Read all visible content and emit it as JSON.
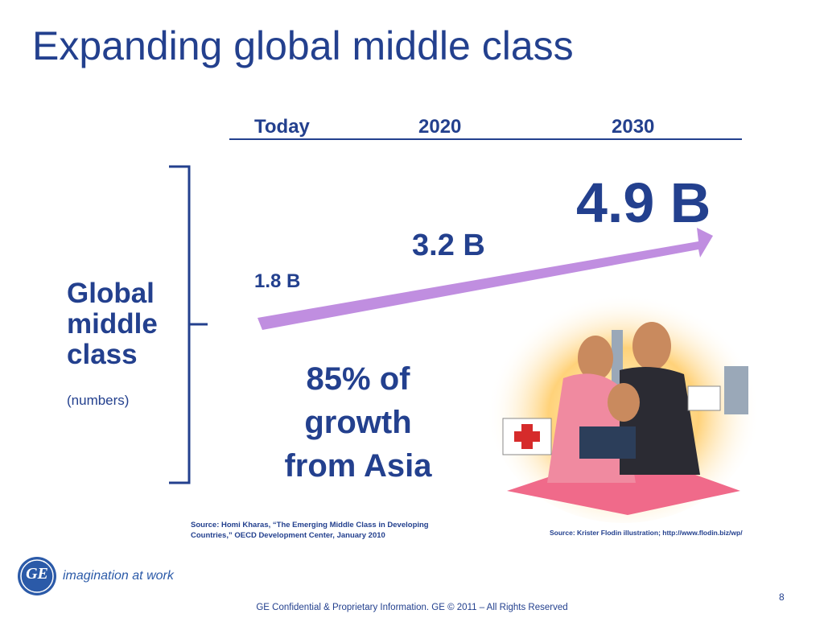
{
  "slide": {
    "title": "Expanding global middle class",
    "timeline": {
      "headers": [
        "Today",
        "2020",
        "2030"
      ],
      "amounts": [
        "1.8 B",
        "3.2 B",
        "4.9 B"
      ]
    },
    "side_label": {
      "text": "Global middle class",
      "note": "(numbers)"
    },
    "callout": "85% of growth from Asia",
    "sources": {
      "left": "Source:  Homi Kharas, “The Emerging Middle Class in Developing Countries,” OECD Development Center, January 2010",
      "right": "Source: Krister Flodin illustration; http://www.flodin.biz/wp/"
    },
    "logo": {
      "mark": "GE",
      "tagline": "imagination at work"
    },
    "footer": "GE Confidential & Proprietary Information. GE © 2011 – All Rights Reserved",
    "page_number": "8"
  }
}
